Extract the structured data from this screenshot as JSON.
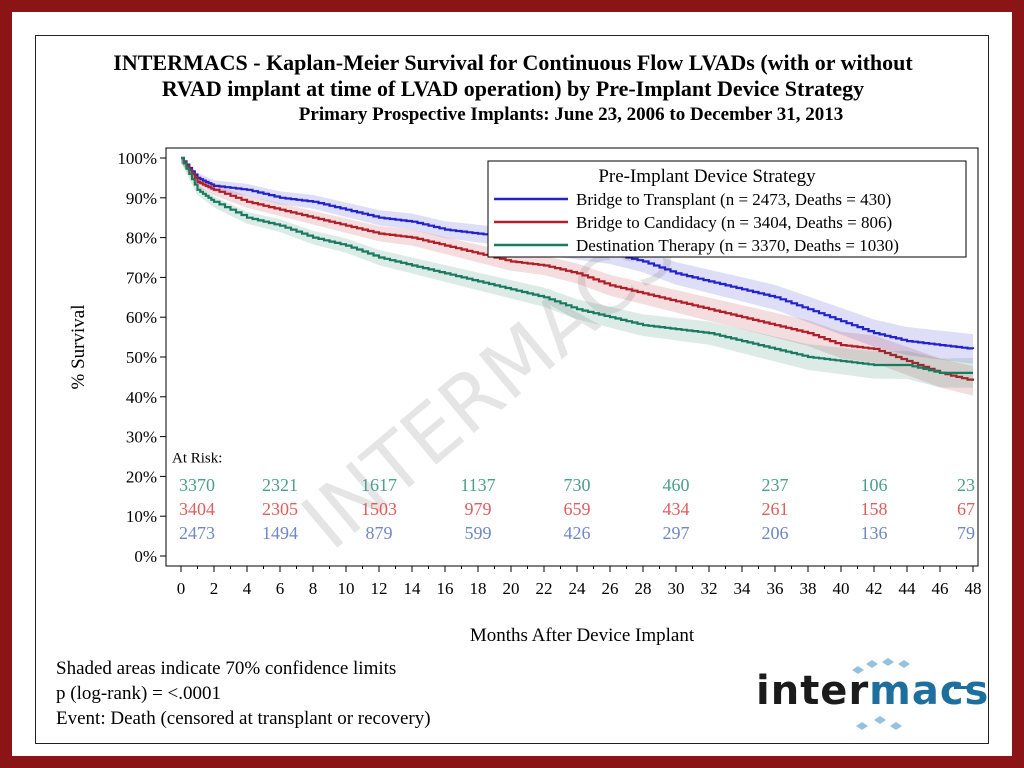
{
  "title": {
    "line1": "INTERMACS - Kaplan-Meier Survival for Continuous Flow LVADs (with or without",
    "line2": "RVAD implant at time of LVAD operation) by Pre-Implant Device Strategy",
    "line3": "Primary Prospective Implants: June 23, 2006 to December 31, 2013"
  },
  "footer": {
    "note1": "Shaded areas indicate 70% confidence limits",
    "note2": "p (log-rank) = <.0001",
    "note3": "Event: Death (censored at transplant or recovery)"
  },
  "logo": {
    "part1": "inter",
    "part2": "macs"
  },
  "watermark": "INTERMACS",
  "colors": {
    "btt": "#2222cc",
    "btc": "#b01e28",
    "dt": "#1a7a60",
    "btt_risk": "#6f87c8",
    "btc_risk": "#e05d5d",
    "dt_risk": "#4aa08a",
    "frame": "#8b1516"
  },
  "chart_data": {
    "type": "line",
    "title": "INTERMACS - Kaplan-Meier Survival for Continuous Flow LVADs (with or without RVAD implant at time of LVAD operation) by Pre-Implant Device Strategy",
    "xlabel": "Months After Device Implant",
    "ylabel": "% Survival",
    "xlim": [
      0,
      48
    ],
    "ylim": [
      0,
      100
    ],
    "x_ticks": [
      0,
      2,
      4,
      6,
      8,
      10,
      12,
      14,
      16,
      18,
      20,
      22,
      24,
      26,
      28,
      30,
      32,
      34,
      36,
      38,
      40,
      42,
      44,
      46,
      48
    ],
    "y_ticks": [
      0,
      10,
      20,
      30,
      40,
      50,
      60,
      70,
      80,
      90,
      100
    ],
    "y_tick_labels": [
      "0%",
      "10%",
      "20%",
      "30%",
      "40%",
      "50%",
      "60%",
      "70%",
      "80%",
      "90%",
      "100%"
    ],
    "legend": {
      "title": "Pre-Implant Device Strategy",
      "position": "top-right"
    },
    "series": [
      {
        "name": "Bridge to Transplant (n = 2473, Deaths = 430)",
        "color_key": "btt",
        "x": [
          0,
          1,
          2,
          4,
          6,
          8,
          10,
          12,
          14,
          16,
          18,
          20,
          22,
          24,
          26,
          28,
          30,
          32,
          34,
          36,
          38,
          40,
          42,
          44,
          46,
          48
        ],
        "y": [
          100,
          95,
          93,
          92,
          90,
          89,
          87,
          85,
          84,
          82,
          81,
          80,
          78,
          77,
          76,
          74,
          71,
          69,
          67,
          65,
          62,
          59,
          56,
          54,
          53,
          52
        ],
        "ci": 1.2
      },
      {
        "name": "Bridge to Candidacy (n = 3404, Deaths = 806)",
        "color_key": "btc",
        "x": [
          0,
          1,
          2,
          4,
          6,
          8,
          10,
          12,
          14,
          16,
          18,
          20,
          22,
          24,
          26,
          28,
          30,
          32,
          34,
          36,
          38,
          40,
          42,
          44,
          46,
          48
        ],
        "y": [
          100,
          94,
          92,
          89,
          87,
          85,
          83,
          81,
          80,
          78,
          76,
          74,
          73,
          71,
          68,
          66,
          64,
          62,
          60,
          58,
          56,
          53,
          52,
          49,
          46,
          44
        ],
        "ci": 1.2
      },
      {
        "name": "Destination Therapy (n = 3370, Deaths = 1030)",
        "color_key": "dt",
        "x": [
          0,
          1,
          2,
          4,
          6,
          8,
          10,
          12,
          14,
          16,
          18,
          20,
          22,
          24,
          26,
          28,
          30,
          32,
          34,
          36,
          38,
          40,
          42,
          44,
          46,
          48
        ],
        "y": [
          100,
          92,
          89,
          85,
          83,
          80,
          78,
          75,
          73,
          71,
          69,
          67,
          65,
          62,
          60,
          58,
          57,
          56,
          54,
          52,
          50,
          49,
          48,
          48,
          46,
          46
        ],
        "ci": 1.2
      }
    ],
    "at_risk": {
      "label": "At Risk:",
      "months": [
        0,
        6,
        12,
        18,
        24,
        30,
        36,
        42,
        48
      ],
      "rows": [
        {
          "color_key": "dt_risk",
          "values": [
            "3370",
            "2321",
            "1617",
            "1137",
            "730",
            "460",
            "237",
            "106",
            "23"
          ]
        },
        {
          "color_key": "btc_risk",
          "values": [
            "3404",
            "2305",
            "1503",
            "979",
            "659",
            "434",
            "261",
            "158",
            "67"
          ]
        },
        {
          "color_key": "btt_risk",
          "values": [
            "2473",
            "1494",
            "879",
            "599",
            "426",
            "297",
            "206",
            "136",
            "79"
          ]
        }
      ]
    }
  }
}
